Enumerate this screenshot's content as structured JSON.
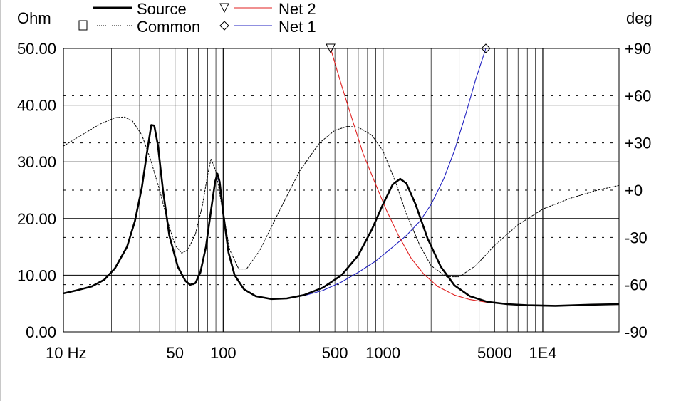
{
  "chart_data": {
    "type": "line",
    "xscale": "log",
    "xlim": [
      10,
      30000
    ],
    "ylim_left": [
      0,
      50
    ],
    "ylim_right": [
      -90,
      90
    ],
    "left_unit": "Ohm",
    "right_unit": "deg",
    "grid": true,
    "legend_position": "top",
    "x_ticks": [
      {
        "value": 10,
        "label": "10 Hz"
      },
      {
        "value": 50,
        "label": "50"
      },
      {
        "value": 100,
        "label": "100"
      },
      {
        "value": 500,
        "label": "500"
      },
      {
        "value": 1000,
        "label": "1000"
      },
      {
        "value": 5000,
        "label": "5000"
      },
      {
        "value": 10000,
        "label": "1E4"
      }
    ],
    "y_left_ticks": [
      {
        "value": 50,
        "label": "50.00"
      },
      {
        "value": 40,
        "label": "40.00"
      },
      {
        "value": 30,
        "label": "30.00"
      },
      {
        "value": 20,
        "label": "20.00"
      },
      {
        "value": 10,
        "label": "10.00"
      },
      {
        "value": 0,
        "label": "0.00"
      }
    ],
    "y_right_ticks": [
      {
        "value": 90,
        "label": "+90"
      },
      {
        "value": 60,
        "label": "+60"
      },
      {
        "value": 30,
        "label": "+30"
      },
      {
        "value": 0,
        "label": "+0"
      },
      {
        "value": -30,
        "label": "-30"
      },
      {
        "value": -60,
        "label": "-60"
      },
      {
        "value": -90,
        "label": "-90"
      }
    ],
    "series": [
      {
        "name": "Source",
        "color": "#000000",
        "style": "solid-bold",
        "axis": "left",
        "marker": "none",
        "points": [
          [
            10,
            6.8
          ],
          [
            12,
            7.3
          ],
          [
            15,
            8.0
          ],
          [
            18,
            9.2
          ],
          [
            21,
            11.2
          ],
          [
            25,
            15.0
          ],
          [
            28,
            19.5
          ],
          [
            31,
            25.5
          ],
          [
            33.5,
            32.0
          ],
          [
            35.5,
            36.5
          ],
          [
            37,
            36.4
          ],
          [
            39,
            33.0
          ],
          [
            42,
            25.0
          ],
          [
            46,
            17.0
          ],
          [
            52,
            11.5
          ],
          [
            58,
            9.0
          ],
          [
            62,
            8.3
          ],
          [
            67,
            8.6
          ],
          [
            72,
            10.5
          ],
          [
            78,
            15.0
          ],
          [
            84,
            21.5
          ],
          [
            89,
            26.5
          ],
          [
            92,
            27.9
          ],
          [
            95,
            26.5
          ],
          [
            100,
            21.0
          ],
          [
            108,
            14.0
          ],
          [
            118,
            10.0
          ],
          [
            135,
            7.5
          ],
          [
            160,
            6.3
          ],
          [
            200,
            5.8
          ],
          [
            250,
            5.9
          ],
          [
            320,
            6.5
          ],
          [
            420,
            7.8
          ],
          [
            550,
            10.0
          ],
          [
            700,
            13.5
          ],
          [
            850,
            18.0
          ],
          [
            1000,
            22.5
          ],
          [
            1150,
            26.0
          ],
          [
            1280,
            27.0
          ],
          [
            1400,
            26.2
          ],
          [
            1600,
            22.5
          ],
          [
            1900,
            16.5
          ],
          [
            2300,
            11.5
          ],
          [
            2800,
            8.2
          ],
          [
            3500,
            6.3
          ],
          [
            4500,
            5.3
          ],
          [
            6000,
            4.9
          ],
          [
            8000,
            4.7
          ],
          [
            12000,
            4.6
          ],
          [
            20000,
            4.8
          ],
          [
            30000,
            4.9
          ]
        ]
      },
      {
        "name": "Common",
        "color": "#000000",
        "style": "dotted",
        "axis": "right",
        "marker": "square",
        "points": [
          [
            10,
            28
          ],
          [
            13,
            35
          ],
          [
            17,
            42
          ],
          [
            21,
            46
          ],
          [
            24,
            46.5
          ],
          [
            27,
            44
          ],
          [
            31,
            35
          ],
          [
            35,
            20
          ],
          [
            40,
            0
          ],
          [
            45,
            -20
          ],
          [
            50,
            -35
          ],
          [
            55,
            -40
          ],
          [
            60,
            -38
          ],
          [
            67,
            -28
          ],
          [
            74,
            -10
          ],
          [
            80,
            10
          ],
          [
            84,
            20
          ],
          [
            90,
            12
          ],
          [
            100,
            -15
          ],
          [
            110,
            -38
          ],
          [
            125,
            -50
          ],
          [
            140,
            -50
          ],
          [
            170,
            -38
          ],
          [
            220,
            -15
          ],
          [
            300,
            12
          ],
          [
            400,
            30
          ],
          [
            500,
            38
          ],
          [
            600,
            40.5
          ],
          [
            700,
            40
          ],
          [
            850,
            35
          ],
          [
            1000,
            25
          ],
          [
            1200,
            5
          ],
          [
            1400,
            -15
          ],
          [
            1700,
            -35
          ],
          [
            2000,
            -48
          ],
          [
            2500,
            -55
          ],
          [
            3000,
            -55
          ],
          [
            3800,
            -48
          ],
          [
            5000,
            -35
          ],
          [
            7000,
            -22
          ],
          [
            10000,
            -12
          ],
          [
            15000,
            -5
          ],
          [
            22000,
            0
          ],
          [
            30000,
            3
          ]
        ]
      },
      {
        "name": "Net 2",
        "color": "#e02020",
        "style": "solid",
        "axis": "left",
        "marker": "triangle-down",
        "marker_x": 470,
        "points": [
          [
            470,
            50
          ],
          [
            550,
            43.5
          ],
          [
            650,
            37
          ],
          [
            750,
            31.5
          ],
          [
            900,
            26
          ],
          [
            1050,
            21.5
          ],
          [
            1250,
            17
          ],
          [
            1500,
            13
          ],
          [
            1800,
            10.2
          ],
          [
            2200,
            8.0
          ],
          [
            2800,
            6.5
          ],
          [
            3500,
            5.7
          ],
          [
            4500,
            5.2
          ],
          [
            6000,
            4.9
          ],
          [
            8000,
            4.75
          ],
          [
            12000,
            4.65
          ],
          [
            20000,
            4.75
          ],
          [
            30000,
            4.85
          ]
        ]
      },
      {
        "name": "Net 1",
        "color": "#2020c0",
        "style": "solid",
        "axis": "left",
        "marker": "diamond",
        "marker_x": 4400,
        "points": [
          [
            10,
            6.8
          ],
          [
            12,
            7.3
          ],
          [
            15,
            8.0
          ],
          [
            18,
            9.2
          ],
          [
            21,
            11.2
          ],
          [
            25,
            15.0
          ],
          [
            28,
            19.5
          ],
          [
            31,
            25.5
          ],
          [
            33.5,
            32.0
          ],
          [
            35.5,
            36.5
          ],
          [
            37,
            36.4
          ],
          [
            39,
            33.0
          ],
          [
            42,
            25.0
          ],
          [
            46,
            17.0
          ],
          [
            52,
            11.5
          ],
          [
            58,
            9.0
          ],
          [
            62,
            8.3
          ],
          [
            67,
            8.6
          ],
          [
            72,
            10.5
          ],
          [
            78,
            15.0
          ],
          [
            84,
            21.5
          ],
          [
            89,
            26.5
          ],
          [
            92,
            27.5
          ],
          [
            95,
            26.0
          ],
          [
            100,
            20.5
          ],
          [
            108,
            13.8
          ],
          [
            118,
            10.0
          ],
          [
            135,
            7.5
          ],
          [
            160,
            6.3
          ],
          [
            200,
            5.8
          ],
          [
            250,
            5.9
          ],
          [
            320,
            6.4
          ],
          [
            420,
            7.3
          ],
          [
            550,
            8.8
          ],
          [
            700,
            10.5
          ],
          [
            900,
            12.5
          ],
          [
            1100,
            14.5
          ],
          [
            1400,
            17.0
          ],
          [
            1700,
            19.5
          ],
          [
            2000,
            22.5
          ],
          [
            2400,
            27.0
          ],
          [
            2800,
            32.0
          ],
          [
            3300,
            38.5
          ],
          [
            3800,
            44.5
          ],
          [
            4400,
            50
          ]
        ]
      }
    ]
  }
}
